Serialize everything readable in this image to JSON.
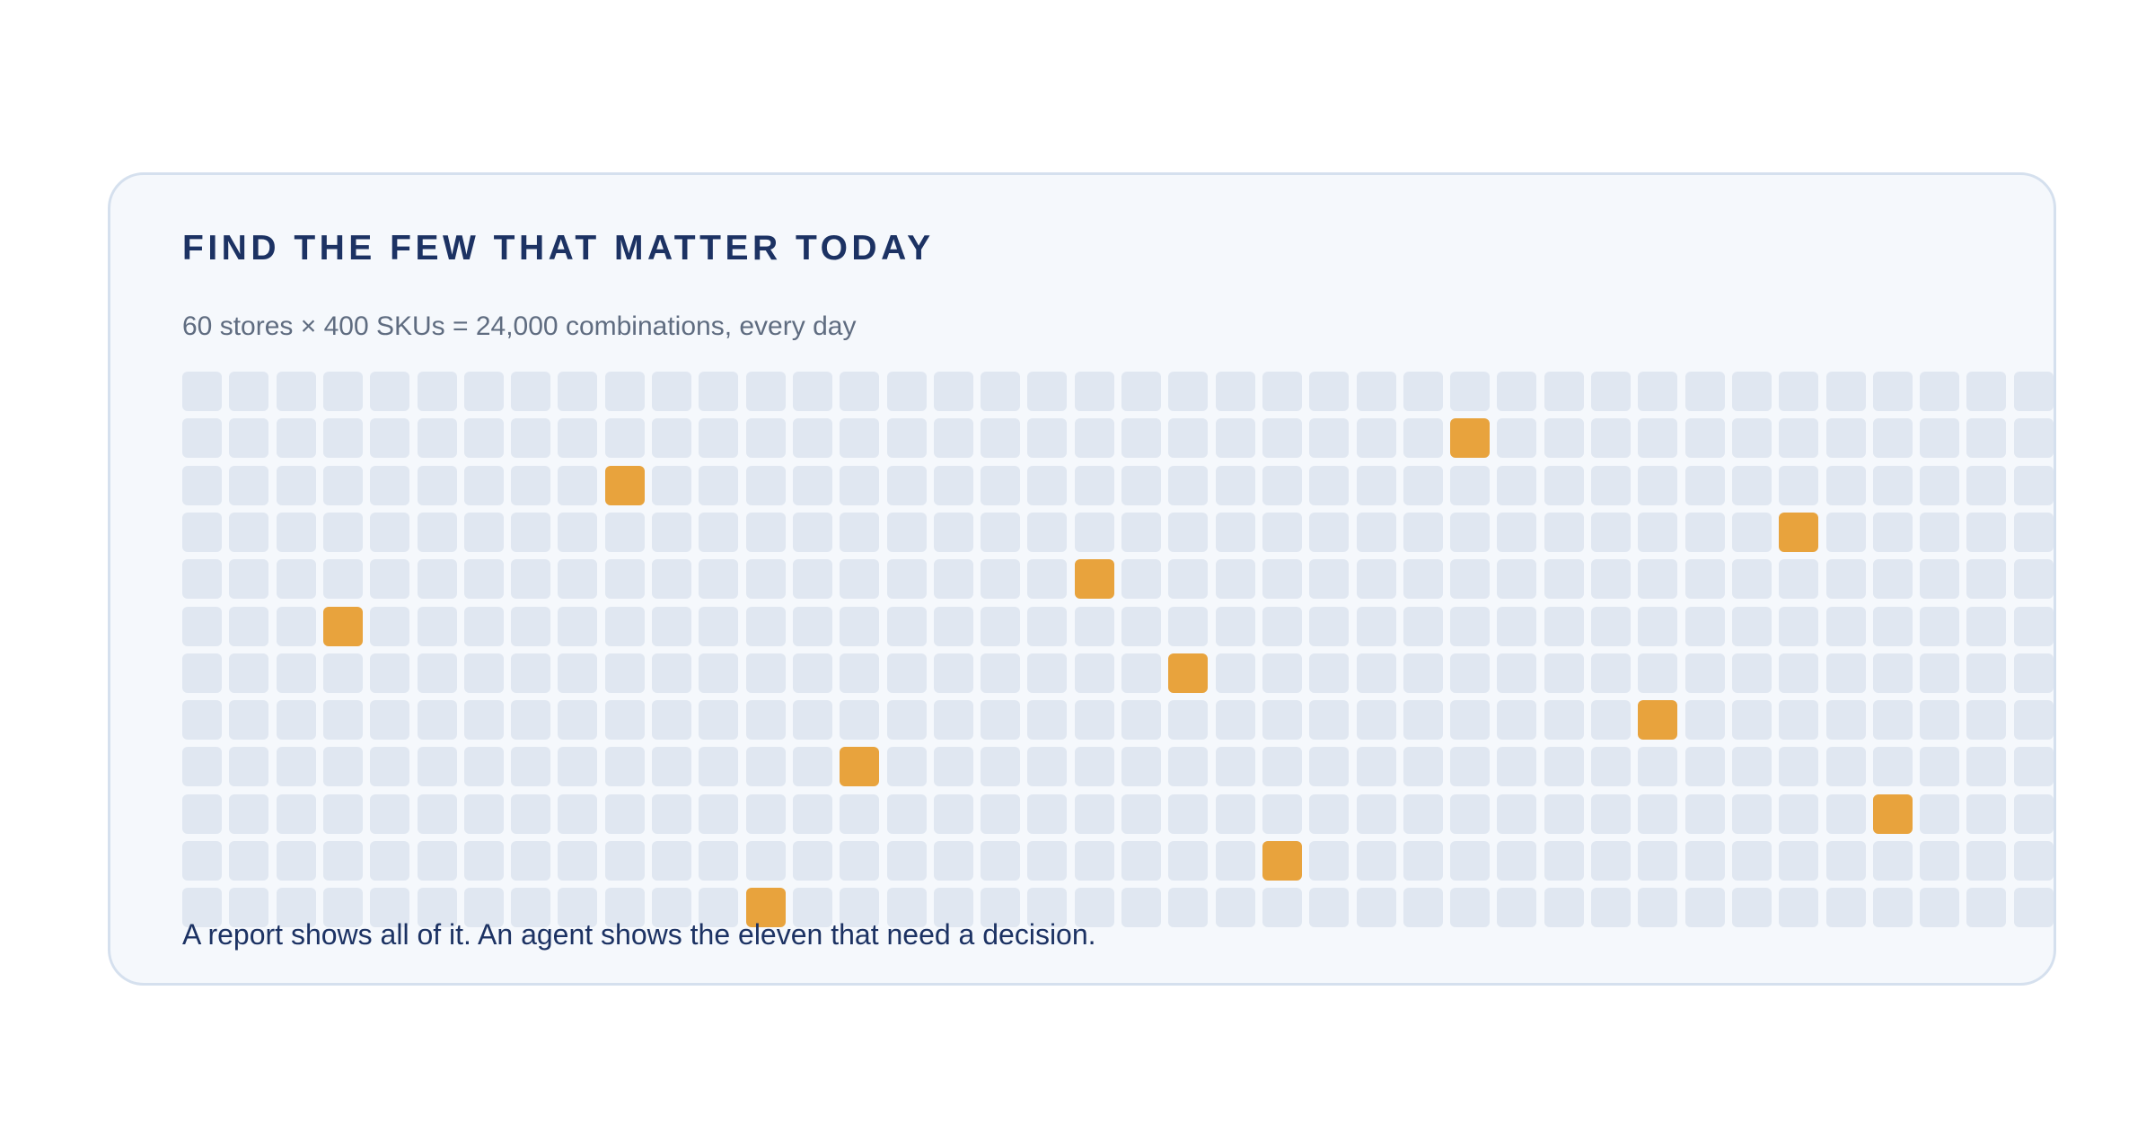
{
  "card": {
    "title": "FIND THE FEW THAT MATTER TODAY",
    "subtitle": "60 stores × 400 SKUs = 24,000 combinations, every day",
    "caption": "A report shows all of it. An agent shows the eleven that need a decision."
  },
  "grid": {
    "rows": 12,
    "cols": 40,
    "cell_color": "#e0e7f1",
    "highlight_color": "#e8a33d",
    "highlighted_cells": [
      {
        "row": 1,
        "col": 27
      },
      {
        "row": 2,
        "col": 9
      },
      {
        "row": 3,
        "col": 34
      },
      {
        "row": 4,
        "col": 19
      },
      {
        "row": 5,
        "col": 3
      },
      {
        "row": 6,
        "col": 21
      },
      {
        "row": 7,
        "col": 31
      },
      {
        "row": 8,
        "col": 14
      },
      {
        "row": 9,
        "col": 36
      },
      {
        "row": 10,
        "col": 23
      },
      {
        "row": 11,
        "col": 12
      }
    ]
  }
}
